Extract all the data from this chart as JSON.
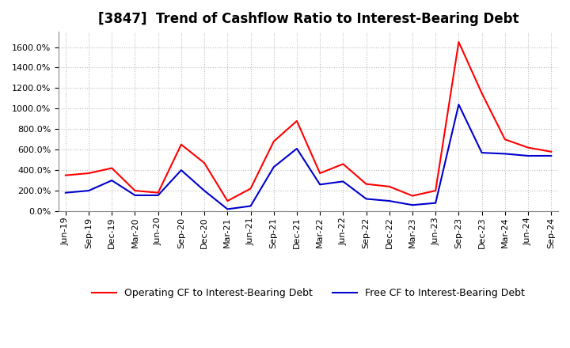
{
  "title": "[3847]  Trend of Cashflow Ratio to Interest-Bearing Debt",
  "x_labels": [
    "Jun-19",
    "Sep-19",
    "Dec-19",
    "Mar-20",
    "Jun-20",
    "Sep-20",
    "Dec-20",
    "Mar-21",
    "Jun-21",
    "Sep-21",
    "Dec-21",
    "Mar-22",
    "Jun-22",
    "Sep-22",
    "Dec-22",
    "Mar-23",
    "Jun-23",
    "Sep-23",
    "Dec-23",
    "Mar-24",
    "Jun-24",
    "Sep-24"
  ],
  "operating_cf": [
    350,
    370,
    420,
    200,
    180,
    650,
    470,
    100,
    220,
    680,
    880,
    370,
    460,
    265,
    240,
    150,
    200,
    1650,
    1150,
    700,
    620,
    580
  ],
  "free_cf": [
    180,
    200,
    300,
    155,
    155,
    400,
    200,
    20,
    50,
    430,
    610,
    260,
    290,
    120,
    100,
    60,
    80,
    1040,
    570,
    560,
    540,
    540
  ],
  "operating_color": "#ff0000",
  "free_color": "#0000cc",
  "background_color": "#ffffff",
  "plot_bg_color": "#ffffff",
  "grid_color": "#bbbbbb",
  "ylim": [
    0,
    1750
  ],
  "yticks": [
    0,
    200,
    400,
    600,
    800,
    1000,
    1200,
    1400,
    1600
  ],
  "legend_operating": "Operating CF to Interest-Bearing Debt",
  "legend_free": "Free CF to Interest-Bearing Debt",
  "title_fontsize": 12,
  "tick_fontsize": 8
}
